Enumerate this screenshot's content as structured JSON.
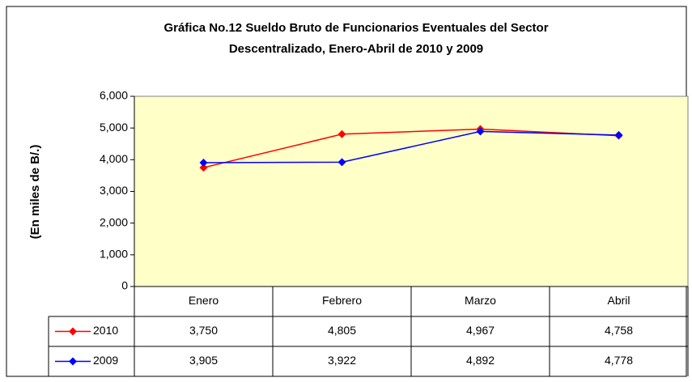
{
  "chart_data": {
    "type": "line",
    "title": "Gráfica No.12 Sueldo Bruto de Funcionarios Eventuales del Sector",
    "subtitle": "Descentralizado, Enero-Abril de 2010 y 2009",
    "y_label": "(En miles de B/.)",
    "categories": [
      "Enero",
      "Febrero",
      "Marzo",
      "Abril"
    ],
    "series": [
      {
        "name": "2010",
        "color": "#ff0000",
        "values": [
          3750,
          4805,
          4967,
          4758
        ],
        "value_labels": [
          "3,750",
          "4,805",
          "4,967",
          "4,758"
        ]
      },
      {
        "name": "2009",
        "color": "#0000ff",
        "values": [
          3905,
          3922,
          4892,
          4778
        ],
        "value_labels": [
          "3,905",
          "3,922",
          "4,892",
          "4,778"
        ]
      }
    ],
    "ylim": [
      0,
      6000
    ],
    "yticks": [
      0,
      {
        "value": 1000,
        "label": "1,000"
      },
      {
        "value": 2000,
        "label": "2,000"
      },
      {
        "value": 3000,
        "label": "3,000"
      },
      {
        "value": 4000,
        "label": "4,000"
      },
      {
        "value": 5000,
        "label": "5,000"
      },
      {
        "value": 6000,
        "label": "6,000"
      }
    ],
    "plot_background": "#ffffc8"
  }
}
